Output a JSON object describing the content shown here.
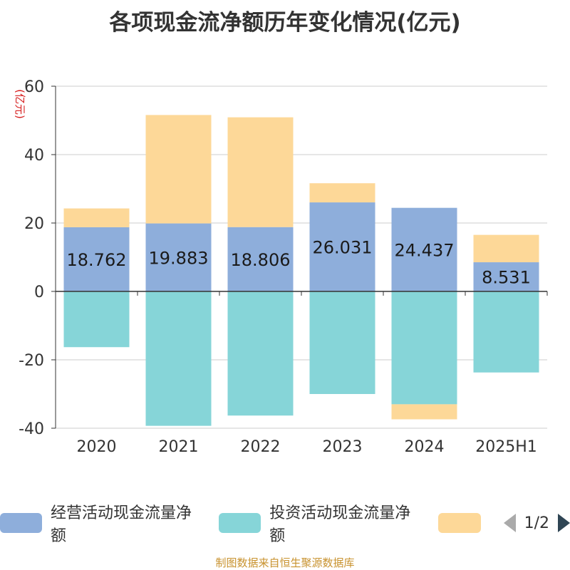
{
  "chart_data": {
    "type": "bar",
    "stacked": true,
    "title": "各项现金流净额历年变化情况(亿元)",
    "ylabel": "(亿元)",
    "categories": [
      "2020",
      "2021",
      "2022",
      "2023",
      "2024",
      "2025H1"
    ],
    "ylim": [
      -40,
      60
    ],
    "yticks": [
      60,
      40,
      20,
      0,
      -20,
      -40
    ],
    "grid": true,
    "legend_position": "bottom",
    "series": [
      {
        "name": "经营活动现金流量净额",
        "color": "#8eaedb",
        "show_labels": true,
        "values": [
          18.762,
          19.883,
          18.806,
          26.031,
          24.437,
          8.531
        ],
        "labels": [
          "18.762",
          "19.883",
          "18.806",
          "26.031",
          "24.437",
          "8.531"
        ]
      },
      {
        "name": "投资活动现金流量净额",
        "color": "#86d5d8",
        "show_labels": false,
        "values": [
          -16.3,
          -39.3,
          -36.3,
          -30.0,
          -33.0,
          -23.7
        ]
      },
      {
        "name": "",
        "color": "#fdd898",
        "show_labels": false,
        "values": [
          5.5,
          31.7,
          32.1,
          5.6,
          -4.4,
          8.0
        ]
      }
    ]
  },
  "legend": {
    "page": "1/2"
  },
  "footer": "制图数据来自恒生聚源数据库"
}
